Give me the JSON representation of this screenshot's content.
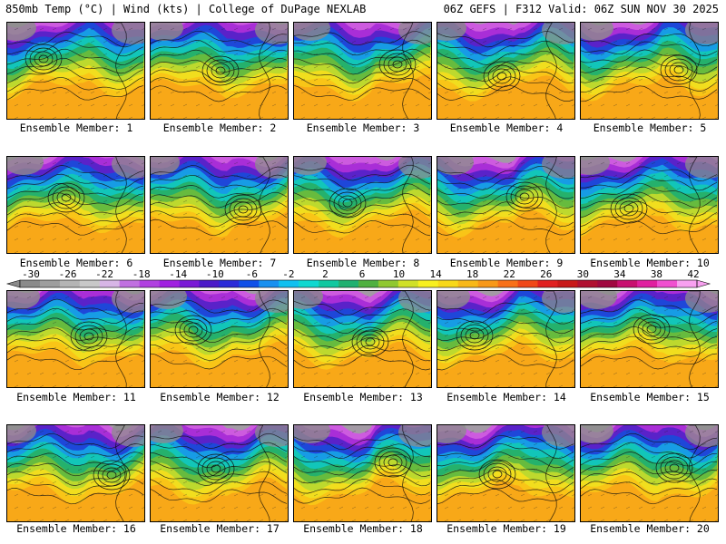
{
  "header": {
    "left_title": "850mb Temp (°C) | Wind (kts) | College of DuPage NEXLAB",
    "right_title": "06Z GEFS | F312 Valid: 06Z SUN NOV 30 2025"
  },
  "panel_label_prefix": "Ensemble Member: ",
  "members": [
    {
      "label": "Ensemble Member: 1"
    },
    {
      "label": "Ensemble Member: 2"
    },
    {
      "label": "Ensemble Member: 3"
    },
    {
      "label": "Ensemble Member: 4"
    },
    {
      "label": "Ensemble Member: 5"
    },
    {
      "label": "Ensemble Member: 6"
    },
    {
      "label": "Ensemble Member: 7"
    },
    {
      "label": "Ensemble Member: 8"
    },
    {
      "label": "Ensemble Member: 9"
    },
    {
      "label": "Ensemble Member: 10"
    },
    {
      "label": "Ensemble Member: 11"
    },
    {
      "label": "Ensemble Member: 12"
    },
    {
      "label": "Ensemble Member: 13"
    },
    {
      "label": "Ensemble Member: 14"
    },
    {
      "label": "Ensemble Member: 15"
    },
    {
      "label": "Ensemble Member: 16"
    },
    {
      "label": "Ensemble Member: 17"
    },
    {
      "label": "Ensemble Member: 18"
    },
    {
      "label": "Ensemble Member: 19"
    },
    {
      "label": "Ensemble Member: 20"
    }
  ],
  "colorbar": {
    "ticks": [
      "-30",
      "-26",
      "-22",
      "-18",
      "-14",
      "-10",
      "-6",
      "-2",
      "2",
      "6",
      "10",
      "14",
      "18",
      "22",
      "26",
      "30",
      "34",
      "38",
      "42"
    ],
    "colors": [
      "#8a8a8a",
      "#9e9e9e",
      "#b4b4b4",
      "#c8c8c8",
      "#d7b5e6",
      "#c070e0",
      "#b040e0",
      "#a020e0",
      "#7a1ad6",
      "#4b1ac8",
      "#2a2ad8",
      "#1050e8",
      "#1890f0",
      "#10c0f0",
      "#10d8d0",
      "#10c8a0",
      "#20b070",
      "#50b040",
      "#90c830",
      "#d0e028",
      "#f8f020",
      "#f8d818",
      "#f8b818",
      "#f89818",
      "#f87018",
      "#f04818",
      "#e02020",
      "#c81818",
      "#b01030",
      "#a00840",
      "#c81070",
      "#e020a0",
      "#f050d0",
      "#f8a0f0"
    ]
  }
}
